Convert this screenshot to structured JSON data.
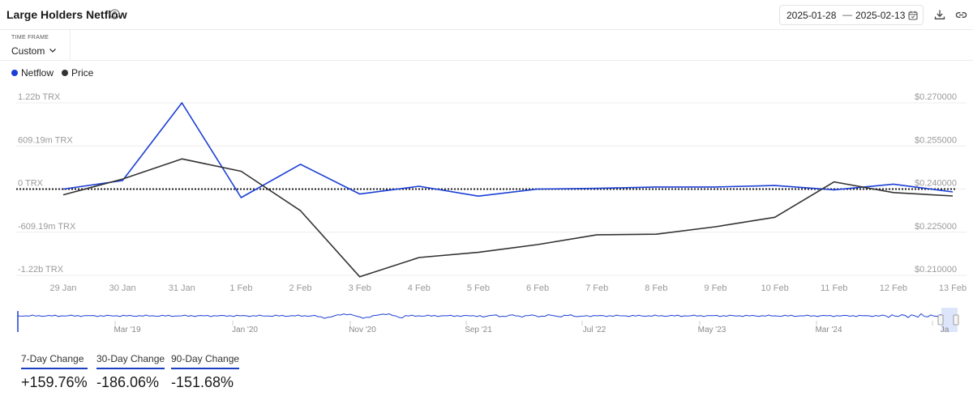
{
  "header": {
    "title": "Large Holders Netflow",
    "date_start": "2025-01-28",
    "date_separator": "—",
    "date_end": "2025-02-13"
  },
  "timeframe": {
    "label": "TIME FRAME",
    "value": "Custom"
  },
  "legend": [
    {
      "name": "Netflow",
      "color": "#1b3fd6"
    },
    {
      "name": "Price",
      "color": "#333333"
    }
  ],
  "chart_data": {
    "type": "line",
    "x": [
      "29 Jan",
      "30 Jan",
      "31 Jan",
      "1 Feb",
      "2 Feb",
      "3 Feb",
      "4 Feb",
      "5 Feb",
      "6 Feb",
      "7 Feb",
      "8 Feb",
      "9 Feb",
      "10 Feb",
      "11 Feb",
      "12 Feb",
      "13 Feb"
    ],
    "series": [
      {
        "name": "Netflow",
        "axis": "left",
        "color": "#1b3fd6",
        "values": [
          0,
          0.12,
          1.22,
          -0.12,
          0.35,
          -0.07,
          0.04,
          -0.1,
          0.0,
          0.01,
          0.03,
          0.03,
          0.05,
          -0.01,
          0.07,
          -0.04
        ]
      },
      {
        "name": "Price",
        "axis": "right",
        "color": "#333333",
        "values": [
          0.238,
          0.2435,
          0.2505,
          0.2462,
          0.2325,
          0.2095,
          0.2162,
          0.218,
          0.2207,
          0.2241,
          0.2243,
          0.2269,
          0.2302,
          0.2425,
          0.2388,
          0.2376
        ]
      }
    ],
    "y_left": {
      "ticks": [
        "1.22b TRX",
        "609.19m TRX",
        "0 TRX",
        "-609.19m TRX",
        "-1.22b TRX"
      ],
      "range": [
        -1.22,
        1.22
      ],
      "unit": "b TRX"
    },
    "y_right": {
      "ticks": [
        "$0.270000",
        "$0.255000",
        "$0.240000",
        "$0.225000",
        "$0.210000"
      ],
      "range": [
        0.21,
        0.27
      ]
    },
    "zero_line": "dotted",
    "grid": "horizontal",
    "navigator": {
      "labels": [
        "Mar '19",
        "Jan '20",
        "Nov '20",
        "Sep '21",
        "Jul '22",
        "May '23",
        "Mar '24",
        "Ja"
      ]
    }
  },
  "stats": [
    {
      "label": "7-Day Change",
      "value": "+159.76%"
    },
    {
      "label": "30-Day Change",
      "value": "-186.06%"
    },
    {
      "label": "90-Day Change",
      "value": "-151.68%"
    }
  ],
  "colors": {
    "accent": "#1b3fd6",
    "price": "#333333",
    "grid": "#ececec",
    "axis_text": "#9a9a9a"
  },
  "icons": [
    "help-circle-icon",
    "calendar-icon",
    "download-icon",
    "link-icon",
    "chevron-down-icon"
  ]
}
